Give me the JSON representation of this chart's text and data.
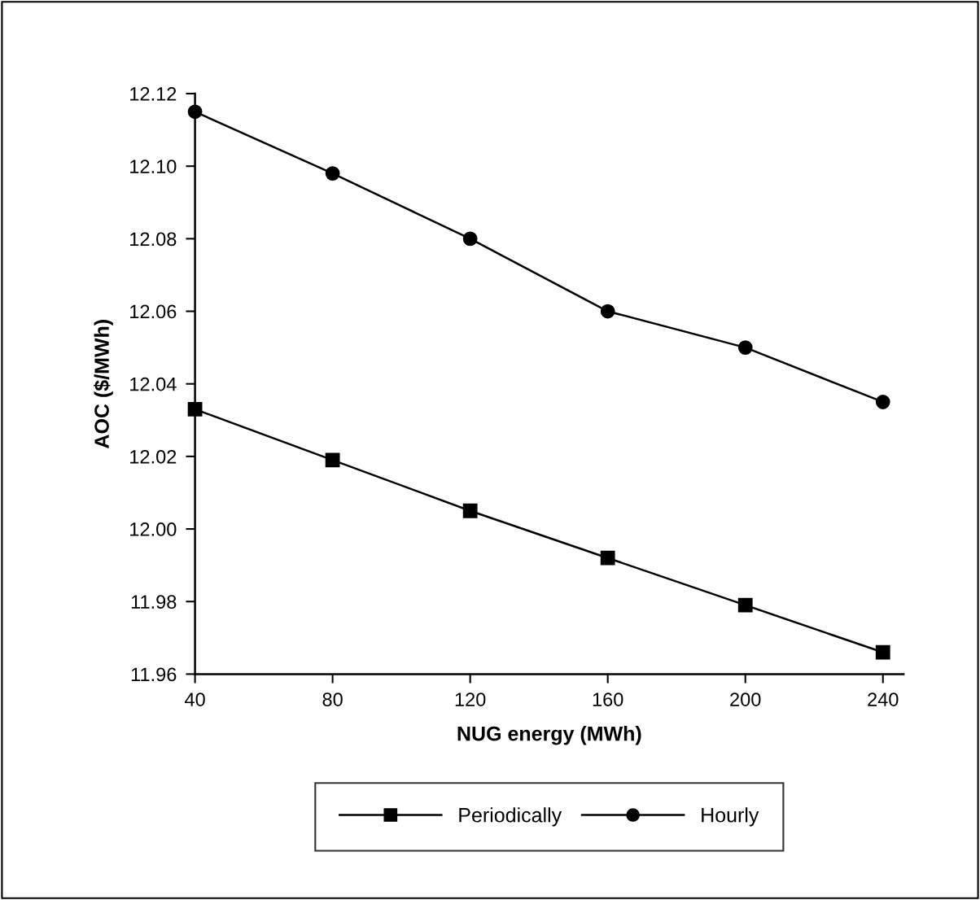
{
  "chart_data": {
    "type": "line",
    "xlabel": "NUG energy (MWh)",
    "ylabel": "AOC ($/MWh)",
    "x": [
      40,
      80,
      120,
      160,
      200,
      240
    ],
    "series": [
      {
        "name": "Periodically",
        "color": "#000000",
        "marker": "square",
        "values": [
          12.033,
          12.019,
          12.005,
          11.992,
          11.979,
          11.966
        ]
      },
      {
        "name": "Hourly",
        "color": "#000000",
        "marker": "circle",
        "values": [
          12.115,
          12.098,
          12.08,
          12.06,
          12.05,
          12.035
        ]
      }
    ],
    "xlim": [
      40,
      246
    ],
    "xticks": [
      40,
      80,
      120,
      160,
      200,
      240
    ],
    "ylim": [
      11.96,
      12.12
    ],
    "yticks": [
      {
        "value": 11.96,
        "label": "11.96"
      },
      {
        "value": 11.98,
        "label": "11.98"
      },
      {
        "value": 12.0,
        "label": "12.00"
      },
      {
        "value": 12.02,
        "label": "12.02"
      },
      {
        "value": 12.04,
        "label": "12.04"
      },
      {
        "value": 12.06,
        "label": "12.06"
      },
      {
        "value": 12.08,
        "label": "12.08"
      },
      {
        "value": 12.1,
        "label": "12.10"
      },
      {
        "value": 12.12,
        "label": "12.12"
      }
    ],
    "grid": false,
    "legend": "bottom",
    "line_style": "solid"
  }
}
